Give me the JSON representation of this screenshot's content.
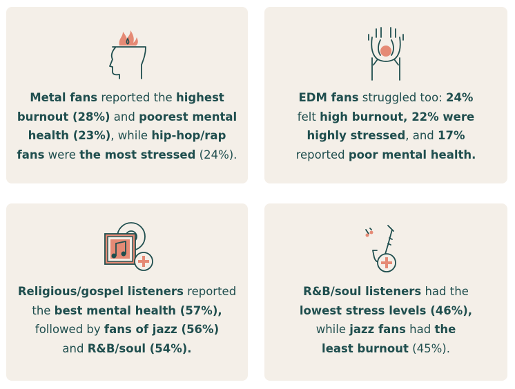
{
  "colors": {
    "card_background": "#f4efe8",
    "text": "#1f4e4e",
    "accent": "#e58a75",
    "icon_stroke": "#1f4e4e"
  },
  "cards": [
    {
      "icon": "burning-head-icon",
      "lines": [
        [
          {
            "t": "Metal fans",
            "b": true
          },
          {
            "t": " reported the ",
            "b": false
          },
          {
            "t": "highest",
            "b": true
          }
        ],
        [
          {
            "t": "burnout (28%)",
            "b": true
          },
          {
            "t": " and ",
            "b": false
          },
          {
            "t": "poorest mental",
            "b": true
          }
        ],
        [
          {
            "t": "health (23%)",
            "b": true
          },
          {
            "t": ", while ",
            "b": false
          },
          {
            "t": "hip-hop/rap",
            "b": true
          }
        ],
        [
          {
            "t": "fans",
            "b": true
          },
          {
            "t": " were ",
            "b": false
          },
          {
            "t": "the most stressed",
            "b": true
          },
          {
            "t": " (24%).",
            "b": false
          }
        ]
      ]
    },
    {
      "icon": "stressed-person-icon",
      "lines": [
        [
          {
            "t": "EDM fans",
            "b": true
          },
          {
            "t": " struggled too: ",
            "b": false
          },
          {
            "t": "24%",
            "b": true
          }
        ],
        [
          {
            "t": "felt ",
            "b": false
          },
          {
            "t": "high burnout, 22% were",
            "b": true
          }
        ],
        [
          {
            "t": "highly stressed",
            "b": true
          },
          {
            "t": ", and ",
            "b": false
          },
          {
            "t": "17%",
            "b": true
          }
        ],
        [
          {
            "t": "reported ",
            "b": false
          },
          {
            "t": "poor mental health.",
            "b": true
          }
        ]
      ]
    },
    {
      "icon": "music-record-plus-icon",
      "lines": [
        [
          {
            "t": "Religious/gospel listeners",
            "b": true
          },
          {
            "t": " reported",
            "b": false
          }
        ],
        [
          {
            "t": "the ",
            "b": false
          },
          {
            "t": "best mental health (57%),",
            "b": true
          }
        ],
        [
          {
            "t": "followed by ",
            "b": false
          },
          {
            "t": "fans of jazz (56%)",
            "b": true
          }
        ],
        [
          {
            "t": "and ",
            "b": false
          },
          {
            "t": "R&B/soul (54%).",
            "b": true
          }
        ]
      ]
    },
    {
      "icon": "saxophone-plus-icon",
      "lines": [
        [
          {
            "t": "R&B/soul listeners",
            "b": true
          },
          {
            "t": " had the",
            "b": false
          }
        ],
        [
          {
            "t": "lowest stress levels (46%),",
            "b": true
          }
        ],
        [
          {
            "t": "while ",
            "b": false
          },
          {
            "t": "jazz fans",
            "b": true
          },
          {
            "t": " had ",
            "b": false
          },
          {
            "t": "the",
            "b": true
          }
        ],
        [
          {
            "t": "least burnout",
            "b": true
          },
          {
            "t": " (45%).",
            "b": false
          }
        ]
      ]
    }
  ]
}
